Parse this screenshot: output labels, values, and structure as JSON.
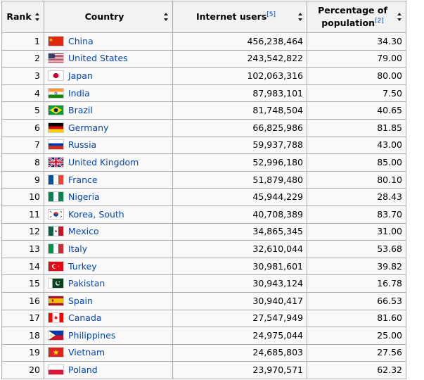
{
  "table": {
    "headers": {
      "rank": "Rank",
      "country": "Country",
      "users": "Internet users",
      "users_ref": "[5]",
      "pct": "Percentage of population",
      "pct_ref": "[2]"
    },
    "rows": [
      {
        "rank": "1",
        "country": "China",
        "flag": "flag-china",
        "users": "456,238,464",
        "pct": "34.30"
      },
      {
        "rank": "2",
        "country": "United States",
        "flag": "flag-united-states",
        "users": "243,542,822",
        "pct": "79.00"
      },
      {
        "rank": "3",
        "country": "Japan",
        "flag": "flag-japan",
        "users": "102,063,316",
        "pct": "80.00"
      },
      {
        "rank": "4",
        "country": "India",
        "flag": "flag-india",
        "users": "87,983,101",
        "pct": "7.50"
      },
      {
        "rank": "5",
        "country": "Brazil",
        "flag": "flag-brazil",
        "users": "81,748,504",
        "pct": "40.65"
      },
      {
        "rank": "6",
        "country": "Germany",
        "flag": "flag-germany",
        "users": "66,825,986",
        "pct": "81.85"
      },
      {
        "rank": "7",
        "country": "Russia",
        "flag": "flag-russia",
        "users": "59,937,788",
        "pct": "43.00"
      },
      {
        "rank": "8",
        "country": "United Kingdom",
        "flag": "flag-united-kingdom",
        "users": "52,996,180",
        "pct": "85.00"
      },
      {
        "rank": "9",
        "country": "France",
        "flag": "flag-france",
        "users": "51,879,480",
        "pct": "80.10"
      },
      {
        "rank": "10",
        "country": "Nigeria",
        "flag": "flag-nigeria",
        "users": "45,944,229",
        "pct": "28.43"
      },
      {
        "rank": "11",
        "country": "Korea, South",
        "flag": "flag-south-korea",
        "users": "40,708,389",
        "pct": "83.70"
      },
      {
        "rank": "12",
        "country": "Mexico",
        "flag": "flag-mexico",
        "users": "34,865,345",
        "pct": "31.00"
      },
      {
        "rank": "13",
        "country": "Italy",
        "flag": "flag-italy",
        "users": "32,610,044",
        "pct": "53.68"
      },
      {
        "rank": "14",
        "country": "Turkey",
        "flag": "flag-turkey",
        "users": "30,981,601",
        "pct": "39.82"
      },
      {
        "rank": "15",
        "country": "Pakistan",
        "flag": "flag-pakistan",
        "users": "30,943,124",
        "pct": "16.78"
      },
      {
        "rank": "16",
        "country": "Spain",
        "flag": "flag-spain",
        "users": "30,940,417",
        "pct": "66.53"
      },
      {
        "rank": "17",
        "country": "Canada",
        "flag": "flag-canada",
        "users": "27,547,949",
        "pct": "81.60"
      },
      {
        "rank": "18",
        "country": "Philippines",
        "flag": "flag-philippines",
        "users": "24,975,044",
        "pct": "25.00"
      },
      {
        "rank": "19",
        "country": "Vietnam",
        "flag": "flag-vietnam",
        "users": "24,685,803",
        "pct": "27.56"
      },
      {
        "rank": "20",
        "country": "Poland",
        "flag": "flag-poland",
        "users": "23,970,571",
        "pct": "62.32"
      }
    ]
  },
  "colors": {
    "link": "#0645ad",
    "header_bg": "#f2f2f2",
    "row_bg": "#f9f9f9",
    "border": "#aaaaaa"
  }
}
